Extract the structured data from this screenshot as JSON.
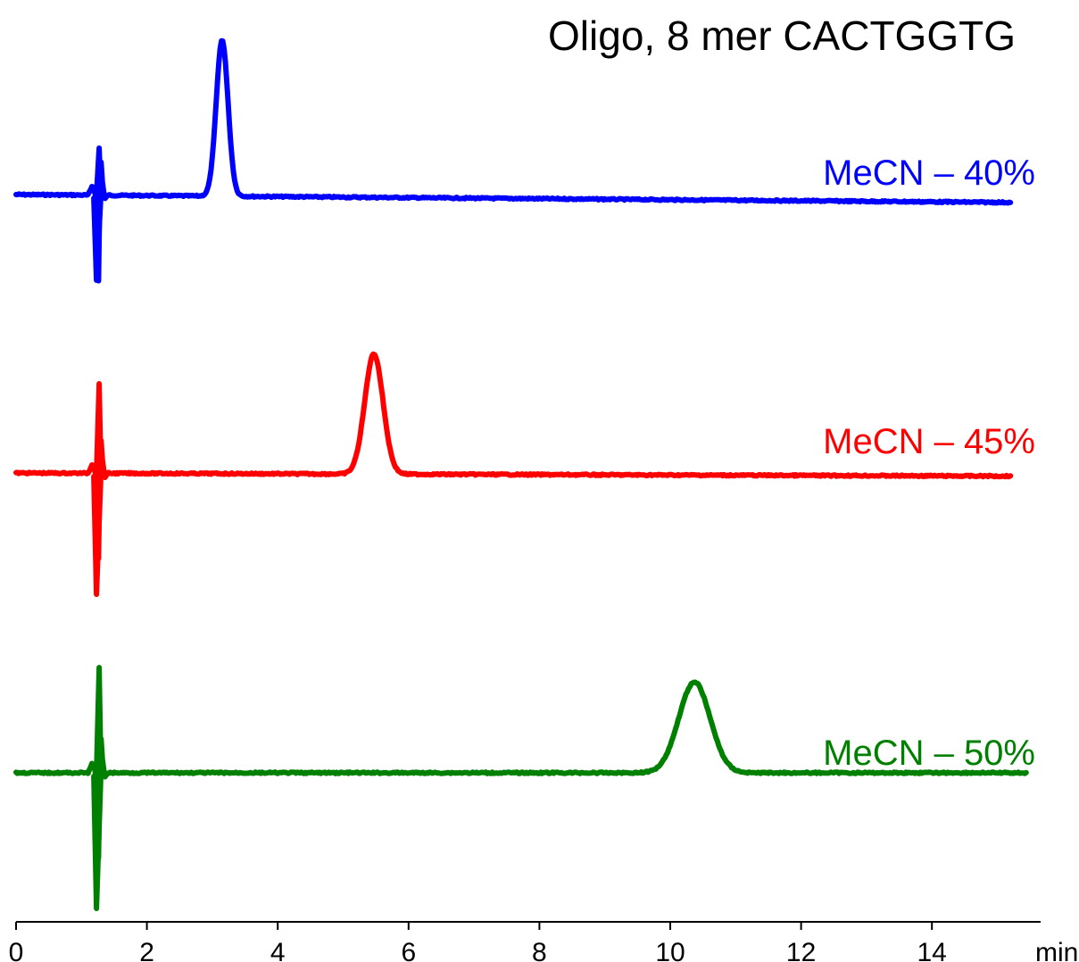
{
  "chart_data": {
    "type": "line",
    "title": "Oligo, 8 mer CACTGGTG",
    "xlabel": "min",
    "ylabel": "",
    "xlim": [
      0,
      15.4
    ],
    "x_ticks": [
      0,
      2,
      4,
      6,
      8,
      10,
      12,
      14
    ],
    "x_tick_labels": [
      "0",
      "2",
      "4",
      "6",
      "8",
      "10",
      "12",
      "14"
    ],
    "y_axis_shown": false,
    "grid": false,
    "legend": "inline labels at right end of each trace",
    "series": [
      {
        "name": "MeCN – 40%",
        "color": "#0000ff",
        "x_end": 15.2,
        "baseline": 0,
        "retention_time_min": 3.15,
        "peak_height": 1.0,
        "peak_sigma": 0.09,
        "drift": -0.05
      },
      {
        "name": "MeCN – 45%",
        "color": "#ff0000",
        "x_end": 15.2,
        "baseline": 0,
        "retention_time_min": 5.47,
        "peak_height": 0.77,
        "peak_sigma": 0.14,
        "drift": -0.02
      },
      {
        "name": "MeCN – 50%",
        "color": "#008000",
        "x_end": 15.45,
        "baseline": 0,
        "retention_time_min": 10.37,
        "peak_height": 0.58,
        "peak_sigma": 0.24,
        "drift": 0.0
      }
    ]
  }
}
